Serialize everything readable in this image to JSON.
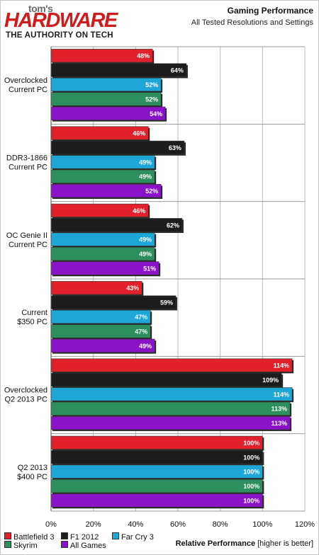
{
  "header": {
    "logo_line1": "tom's",
    "logo_line2": "HARDWARE",
    "logo_line3": "THE AUTHORITY ON TECH",
    "title": "Gaming Performance",
    "subtitle": "All Tested Resolutions and Settings"
  },
  "chart_data": {
    "type": "bar",
    "orientation": "horizontal",
    "title": "Gaming Performance",
    "subtitle": "All Tested Resolutions and Settings",
    "xlabel_bold": "Relative Performance",
    "xlabel_note": "[higher is better]",
    "xlim": [
      0,
      120
    ],
    "xticks": [
      "0%",
      "20%",
      "40%",
      "60%",
      "80%",
      "100%",
      "120%"
    ],
    "grid": true,
    "legend_position": "bottom-left",
    "categories": [
      [
        "Overclocked",
        "Current PC"
      ],
      [
        "DDR3-1866",
        "Current PC"
      ],
      [
        "OC Genie II",
        "Current PC"
      ],
      [
        "Current",
        "$350 PC"
      ],
      [
        "Overclocked",
        "Q2 2013 PC"
      ],
      [
        "Q2 2013",
        "$400 PC"
      ]
    ],
    "series": [
      {
        "name": "Battlefield 3",
        "color": "#e0202a",
        "values": [
          48,
          46,
          46,
          43,
          114,
          100
        ]
      },
      {
        "name": "F1 2012",
        "color": "#1c1c1c",
        "values": [
          64,
          63,
          62,
          59,
          109,
          100
        ]
      },
      {
        "name": "Far Cry 3",
        "color": "#1ea7d6",
        "values": [
          52,
          49,
          49,
          47,
          114,
          100
        ]
      },
      {
        "name": "Skyrim",
        "color": "#2e8f5e",
        "values": [
          52,
          49,
          49,
          47,
          113,
          100
        ]
      },
      {
        "name": "All Games",
        "color": "#8a12c8",
        "values": [
          54,
          52,
          51,
          49,
          113,
          100
        ]
      }
    ]
  }
}
